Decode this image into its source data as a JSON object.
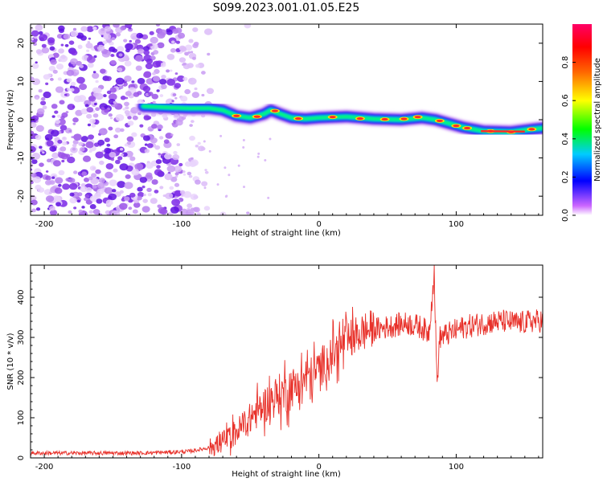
{
  "title": "S099.2023.001.01.05.E25",
  "chart_data": [
    {
      "type": "heatmap",
      "xlabel": "Height of straight line (km)",
      "ylabel": "Frequency (Hz)",
      "xlim": [
        -210,
        163
      ],
      "ylim": [
        -25,
        25
      ],
      "xticks": [
        -200,
        -100,
        0,
        100
      ],
      "yticks": [
        -20,
        -10,
        0,
        10,
        20
      ],
      "grid": false,
      "colorbar": {
        "label": "Normalized spectral amplitude",
        "range": [
          0,
          1
        ],
        "ticks": [
          0.0,
          0.2,
          0.4,
          0.6,
          0.8
        ],
        "colormap": [
          "#ffffff",
          "#cc66ff",
          "#0000ff",
          "#00ccff",
          "#00ff00",
          "#ffff00",
          "#ff6600",
          "#ff0000",
          "#ff0066"
        ]
      },
      "ridge": {
        "description": "dominant frequency track",
        "x": [
          -128,
          -110,
          -95,
          -80,
          -70,
          -60,
          -50,
          -40,
          -35,
          -28,
          -20,
          -10,
          0,
          20,
          40,
          60,
          75,
          85,
          95,
          105,
          120,
          140,
          155,
          163
        ],
        "frequency": [
          3.5,
          3.2,
          3.0,
          3.0,
          2.5,
          1.0,
          0.5,
          1.5,
          2.5,
          1.5,
          0.5,
          0.2,
          0.5,
          0.8,
          0.2,
          0.0,
          0.5,
          0.0,
          -1.0,
          -2.0,
          -3.0,
          -3.2,
          -2.5,
          -2.2
        ]
      }
    },
    {
      "type": "line",
      "xlabel": "Height of straight line (km)",
      "ylabel": "SNR (10 * v/v)",
      "xlim": [
        -210,
        163
      ],
      "ylim": [
        0,
        480
      ],
      "xticks": [
        -200,
        -100,
        0,
        100
      ],
      "yticks": [
        0,
        100,
        200,
        300,
        400
      ],
      "grid": false,
      "series": [
        {
          "color": "#e8312a",
          "x": [
            -210,
            -190,
            -170,
            -150,
            -130,
            -110,
            -95,
            -85,
            -75,
            -65,
            -55,
            -45,
            -35,
            -25,
            -15,
            -5,
            5,
            15,
            25,
            35,
            45,
            55,
            65,
            75,
            80,
            84,
            86,
            88,
            95,
            105,
            115,
            125,
            135,
            145,
            155,
            163
          ],
          "y": [
            12,
            12,
            12,
            12,
            12,
            14,
            16,
            22,
            30,
            50,
            80,
            115,
            145,
            165,
            185,
            205,
            240,
            275,
            300,
            318,
            322,
            330,
            335,
            325,
            310,
            460,
            180,
            300,
            310,
            325,
            332,
            338,
            340,
            335,
            340,
            342
          ]
        }
      ]
    }
  ]
}
